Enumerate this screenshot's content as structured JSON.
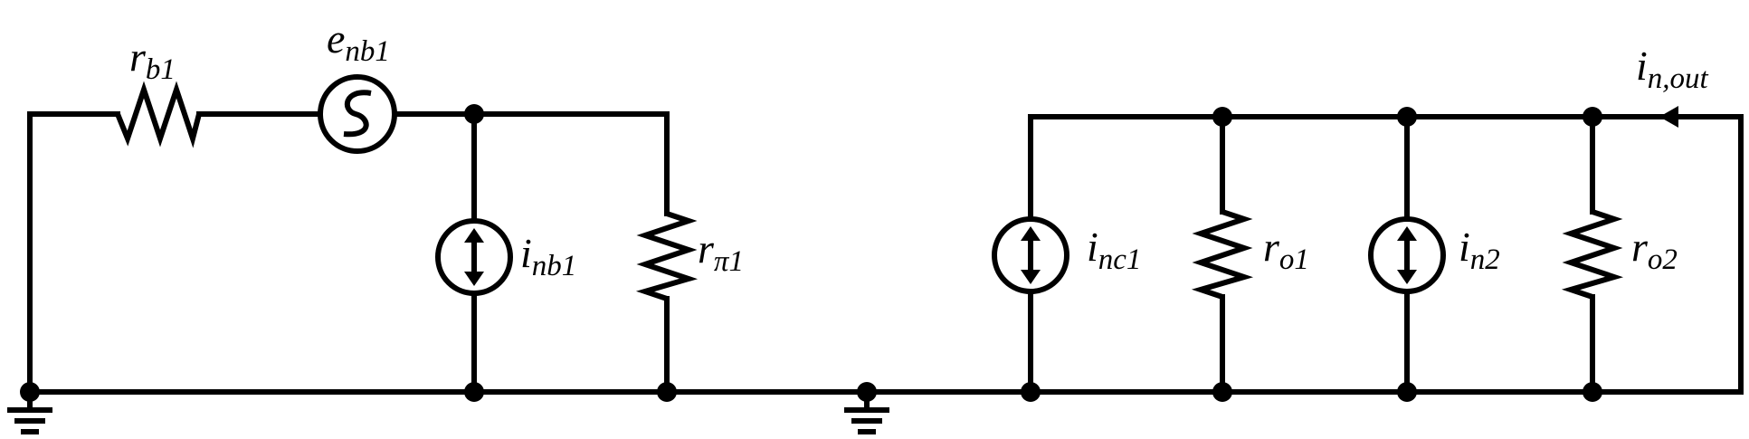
{
  "labels": {
    "rb1": {
      "main": "r",
      "sub": "b1"
    },
    "enb1": {
      "main": "e",
      "sub": "nb1"
    },
    "inb1": {
      "main": "i",
      "sub": "nb1"
    },
    "rpi1": {
      "main": "r",
      "sub": "π1"
    },
    "inc1": {
      "main": "i",
      "sub": "nc1"
    },
    "ro1": {
      "main": "r",
      "sub": "o1"
    },
    "in2": {
      "main": "i",
      "sub": "n2"
    },
    "ro2": {
      "main": "r",
      "sub": "o2"
    },
    "inout": {
      "main": "i",
      "sub": "n,out"
    }
  },
  "colors": {
    "stroke": "#000000",
    "background": "#ffffff"
  }
}
